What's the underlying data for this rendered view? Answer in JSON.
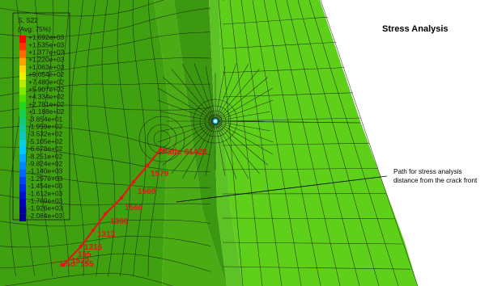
{
  "header": {
    "title": "Stress Analysis"
  },
  "legend": {
    "variable": "S, S22",
    "averaging": "(Avg: 75%)",
    "entries": [
      {
        "label": "+1.692e+03",
        "color": "#ff0000"
      },
      {
        "label": "+1.535e+03",
        "color": "#ff3300"
      },
      {
        "label": "+1.377e+03",
        "color": "#ff6a00"
      },
      {
        "label": "+1.220e+03",
        "color": "#ffa200"
      },
      {
        "label": "+1.063e+03",
        "color": "#ffd400"
      },
      {
        "label": "+9.054e+02",
        "color": "#e6f200"
      },
      {
        "label": "+7.480e+02",
        "color": "#b4ef00"
      },
      {
        "label": "+5.907e+02",
        "color": "#7fe800"
      },
      {
        "label": "+4.334e+02",
        "color": "#4ce000"
      },
      {
        "label": "+2.761e+02",
        "color": "#23d61d"
      },
      {
        "label": "+1.188e+02",
        "color": "#16d04b"
      },
      {
        "label": "-3.854e+01",
        "color": "#12cc72"
      },
      {
        "label": "-1.959e+02",
        "color": "#10c89a"
      },
      {
        "label": "-3.532e+02",
        "color": "#0ec6bd"
      },
      {
        "label": "-5.105e+02",
        "color": "#08cfe0"
      },
      {
        "label": "-6.678e+02",
        "color": "#00c8ff"
      },
      {
        "label": "-8.251e+02",
        "color": "#00a8ff"
      },
      {
        "label": "-9.824e+02",
        "color": "#0088ff"
      },
      {
        "label": "-1.140e+03",
        "color": "#0066ff"
      },
      {
        "label": "-1.297e+03",
        "color": "#0044f0"
      },
      {
        "label": "-1.454e+03",
        "color": "#0028e0"
      },
      {
        "label": "-1.612e+03",
        "color": "#0010cc"
      },
      {
        "label": "-1.769e+03",
        "color": "#0000b8"
      },
      {
        "label": "-1.926e+03",
        "color": "#0000a0"
      },
      {
        "label": "-2.084e+03",
        "color": "#00008c"
      }
    ]
  },
  "model": {
    "colors": {
      "far_left": "#3fa010",
      "left_mid": "#4aab14",
      "band_dark": "#3c9810",
      "band_light": "#5cc226",
      "right_face": "#5fd01a",
      "mesh_line": "#1a1a1a",
      "path": "#e8141a"
    }
  },
  "path": {
    "start_label": "Path: 01420",
    "end_label": "End: 155",
    "nodes": [
      "1579",
      "1569",
      "1566",
      "1306",
      "1313",
      "1316",
      "155",
      "1522"
    ]
  },
  "annotation": {
    "line1": "Path for stress analysis",
    "line2": "distance from the crack front"
  }
}
